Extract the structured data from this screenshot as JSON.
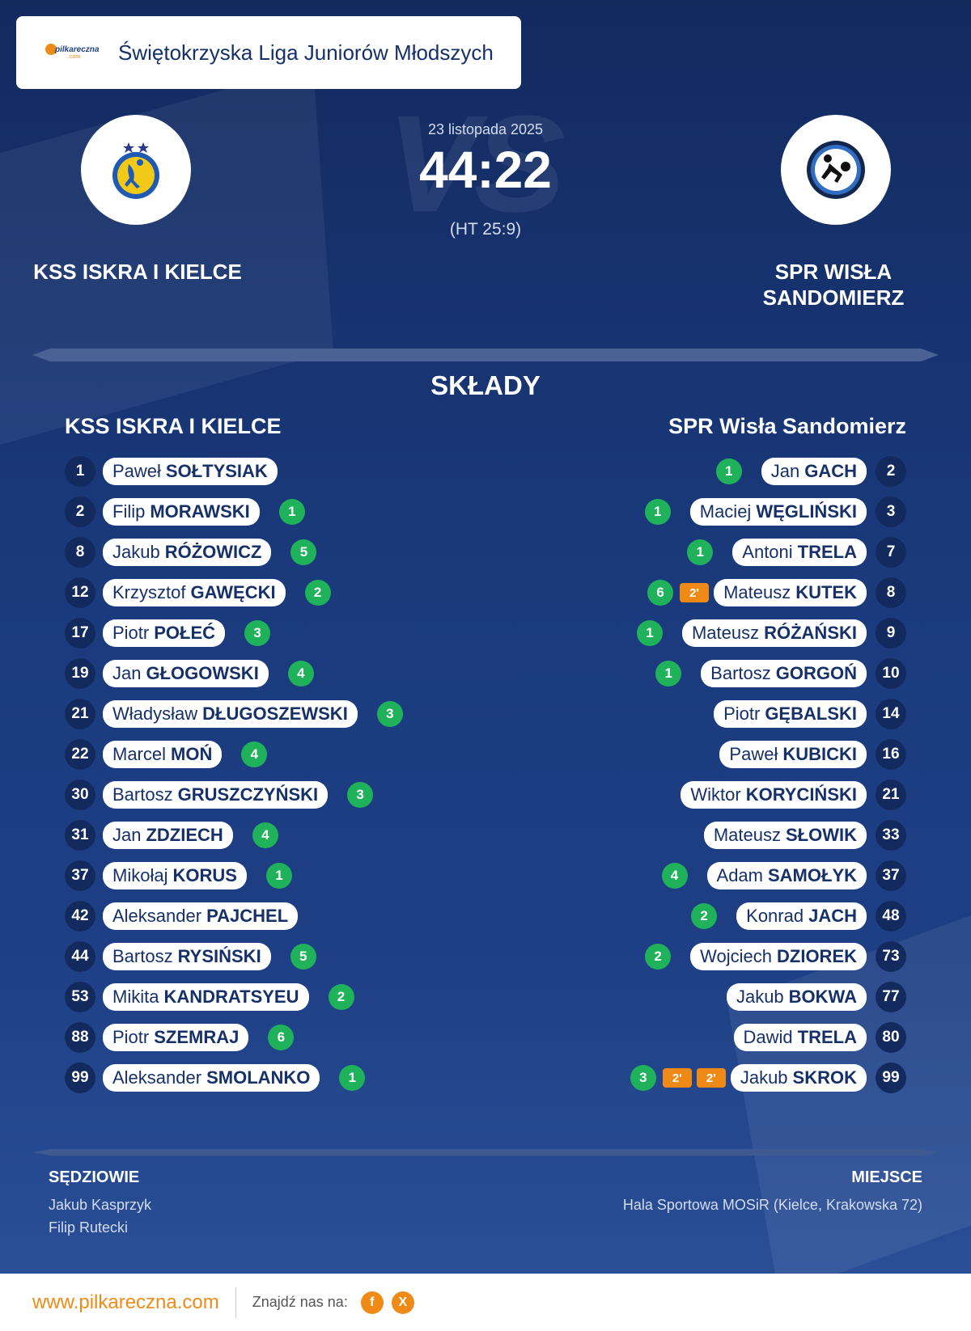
{
  "league": {
    "name": "Świętokrzyska Liga Juniorów Młodszych",
    "logo_text": "pilkareczna",
    "logo_subtext": ".com"
  },
  "match": {
    "date": "23 listopada 2025",
    "score": "44:22",
    "halftime": "(HT 25:9)",
    "vs_watermark": "VS"
  },
  "home": {
    "name": "KSS ISKRA I KIELCE",
    "squad_title": "KSS ISKRA I KIELCE"
  },
  "away": {
    "name_line1": "SPR WISŁA",
    "name_line2": "SANDOMIERZ",
    "squad_title": "SPR Wisła Sandomierz"
  },
  "section_title": "SKŁADY",
  "home_players": [
    {
      "num": "1",
      "first": "Paweł",
      "last": "SOŁTYSIAK",
      "goals": ""
    },
    {
      "num": "2",
      "first": "Filip",
      "last": "MORAWSKI",
      "goals": "1"
    },
    {
      "num": "8",
      "first": "Jakub",
      "last": "RÓŻOWICZ",
      "goals": "5"
    },
    {
      "num": "12",
      "first": "Krzysztof",
      "last": "GAWĘCKI",
      "goals": "2"
    },
    {
      "num": "17",
      "first": "Piotr",
      "last": "POŁEĆ",
      "goals": "3"
    },
    {
      "num": "19",
      "first": "Jan",
      "last": "GŁOGOWSKI",
      "goals": "4"
    },
    {
      "num": "21",
      "first": "Władysław",
      "last": "DŁUGOSZEWSKI",
      "goals": "3"
    },
    {
      "num": "22",
      "first": "Marcel",
      "last": "MOŃ",
      "goals": "4"
    },
    {
      "num": "30",
      "first": "Bartosz",
      "last": "GRUSZCZYŃSKI",
      "goals": "3"
    },
    {
      "num": "31",
      "first": "Jan",
      "last": "ZDZIECH",
      "goals": "4"
    },
    {
      "num": "37",
      "first": "Mikołaj",
      "last": "KORUS",
      "goals": "1"
    },
    {
      "num": "42",
      "first": "Aleksander",
      "last": "PAJCHEL",
      "goals": ""
    },
    {
      "num": "44",
      "first": "Bartosz",
      "last": "RYSIŃSKI",
      "goals": "5"
    },
    {
      "num": "53",
      "first": "Mikita",
      "last": "KANDRATSYEU",
      "goals": "2"
    },
    {
      "num": "88",
      "first": "Piotr",
      "last": "SZEMRAJ",
      "goals": "6"
    },
    {
      "num": "99",
      "first": "Aleksander",
      "last": "SMOLANKO",
      "goals": "1"
    }
  ],
  "away_players": [
    {
      "num": "2",
      "first": "Jan",
      "last": "GACH",
      "goals": "1",
      "penalties": []
    },
    {
      "num": "3",
      "first": "Maciej",
      "last": "WĘGLIŃSKI",
      "goals": "1",
      "penalties": []
    },
    {
      "num": "7",
      "first": "Antoni",
      "last": "TRELA",
      "goals": "1",
      "penalties": []
    },
    {
      "num": "8",
      "first": "Mateusz",
      "last": "KUTEK",
      "goals": "6",
      "penalties": [
        "2'"
      ]
    },
    {
      "num": "9",
      "first": "Mateusz",
      "last": "RÓŻAŃSKI",
      "goals": "1",
      "penalties": []
    },
    {
      "num": "10",
      "first": "Bartosz",
      "last": "GORGOŃ",
      "goals": "1",
      "penalties": []
    },
    {
      "num": "14",
      "first": "Piotr",
      "last": "GĘBALSKI",
      "goals": "",
      "penalties": []
    },
    {
      "num": "16",
      "first": "Paweł",
      "last": "KUBICKI",
      "goals": "",
      "penalties": []
    },
    {
      "num": "21",
      "first": "Wiktor",
      "last": "KORYCIŃSKI",
      "goals": "",
      "penalties": []
    },
    {
      "num": "33",
      "first": "Mateusz",
      "last": "SŁOWIK",
      "goals": "",
      "penalties": []
    },
    {
      "num": "37",
      "first": "Adam",
      "last": "SAMOŁYK",
      "goals": "4",
      "penalties": []
    },
    {
      "num": "48",
      "first": "Konrad",
      "last": "JACH",
      "goals": "2",
      "penalties": []
    },
    {
      "num": "73",
      "first": "Wojciech",
      "last": "DZIOREK",
      "goals": "2",
      "penalties": []
    },
    {
      "num": "77",
      "first": "Jakub",
      "last": "BOKWA",
      "goals": "",
      "penalties": []
    },
    {
      "num": "80",
      "first": "Dawid",
      "last": "TRELA",
      "goals": "",
      "penalties": []
    },
    {
      "num": "99",
      "first": "Jakub",
      "last": "SKROK",
      "goals": "3",
      "penalties": [
        "2'",
        "2'"
      ]
    }
  ],
  "officials": {
    "label": "SĘDZIOWIE",
    "names": [
      "Jakub Kasprzyk",
      "Filip Rutecki"
    ]
  },
  "venue": {
    "label": "MIEJSCE",
    "name": "Hala Sportowa MOSiR (Kielce, Krakowska 72)"
  },
  "footer": {
    "url": "www.pilkareczna.com",
    "find_us": "Znajdź nas na:",
    "social": [
      "f",
      "X"
    ]
  },
  "colors": {
    "background": "#17306a",
    "goal_badge": "#20b25a",
    "penalty_badge": "#f08a16",
    "accent": "#f08a16",
    "number_circle": "#122a5e"
  },
  "icons": {
    "home_logo": "iskra-kielce-crest-icon",
    "away_logo": "wisla-sandomierz-crest-icon"
  }
}
